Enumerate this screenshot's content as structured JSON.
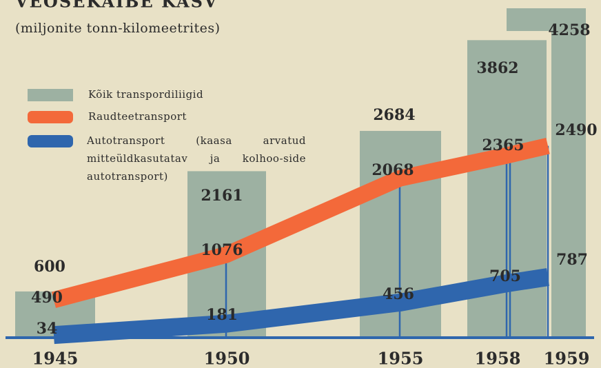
{
  "chart_data": {
    "type": "bar",
    "title": "VEOSEKÄIBE KASV",
    "subtitle": "(miljonite tonn-kilomeetrites)",
    "categories": [
      "1945",
      "1950",
      "1955",
      "1958",
      "1959"
    ],
    "series": [
      {
        "name": "Kõik transpordiliigid",
        "type": "bar",
        "color": "#9db1a2",
        "values": [
          600,
          2161,
          2684,
          3862,
          4258
        ]
      },
      {
        "name": "Raudteetransport",
        "type": "line",
        "color": "#f3693a",
        "values": [
          490,
          1076,
          2068,
          2365,
          2490
        ]
      },
      {
        "name": "Autotransport (kaasa arvatud mitteüldkasutatav ja kolhoo-side autotransport)",
        "type": "line",
        "color": "#2f66ad",
        "values": [
          34,
          181,
          456,
          705,
          787
        ]
      }
    ]
  }
}
